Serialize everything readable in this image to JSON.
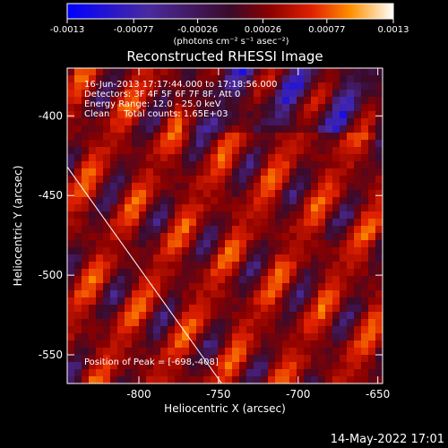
{
  "colorbar": {
    "min": -0.0013,
    "max": 0.0013,
    "tick_labels": [
      "-0.0013",
      "-0.00077",
      "-0.00026",
      "0.00026",
      "0.00077",
      "0.0013"
    ],
    "tick_values": [
      -0.0013,
      -0.00077,
      -0.00026,
      0.00026,
      0.00077,
      0.0013
    ],
    "unit_label": "(photons cm⁻² s⁻¹ asec⁻²)"
  },
  "chart_data": {
    "type": "heatmap",
    "title": "Reconstructed RHESSI Image",
    "xlabel": "Heliocentric X (arcsec)",
    "ylabel": "Heliocentric Y (arcsec)",
    "xlim": [
      -845,
      -647
    ],
    "ylim": [
      -568,
      -370
    ],
    "x_ticks": [
      -800,
      -750,
      -700,
      -650
    ],
    "x_tick_labels": [
      "-800",
      "-750",
      "-700",
      "-650"
    ],
    "y_ticks": [
      -550,
      -500,
      -450,
      -400
    ],
    "y_tick_labels": [
      "-550",
      "-500",
      "-450",
      "-400"
    ],
    "peak": [
      -698,
      -408
    ],
    "limb_line": [
      [
        -845,
        -432
      ],
      [
        -748,
        -568
      ]
    ]
  },
  "info": {
    "time": "16-Jun-2013 17:17:44.000 to 17:18:56.000",
    "detectors": "Detectors: 3F 4F 5F 6F 7F 8F, Att 0",
    "energy": "Energy Range: 12.0 - 25.0 keV",
    "clean": "Clean     Total counts: 1.65E+03",
    "peak_text": "Position of Peak = [-698,-408]"
  },
  "footer": {
    "date": "14-May-2022 17:01"
  }
}
